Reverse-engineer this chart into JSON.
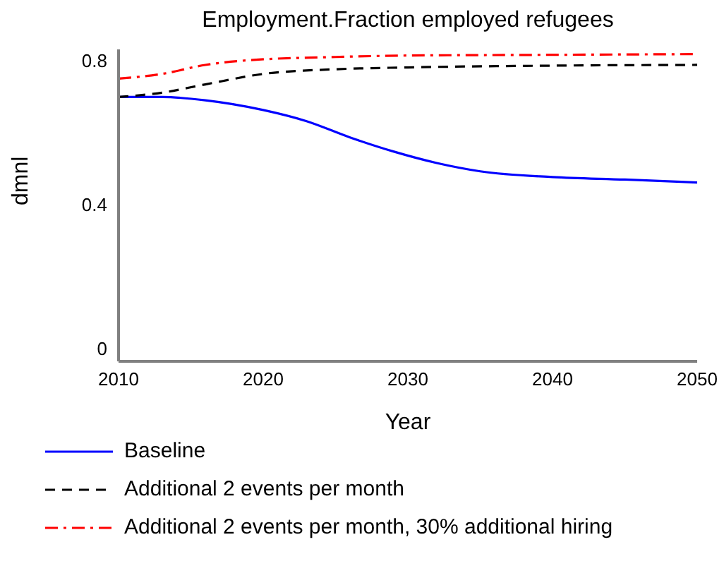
{
  "chart_data": {
    "type": "line",
    "title": "Employment.Fraction employed refugees",
    "xlabel": "Year",
    "ylabel": "dmnl",
    "xlim": [
      2010,
      2050
    ],
    "xticks": [
      2010,
      2020,
      2030,
      2040,
      2050
    ],
    "ylim": [
      -0.035,
      0.83
    ],
    "yticks": [
      0,
      0.4,
      0.8
    ],
    "legend": "bottom",
    "marker": "none",
    "series": [
      {
        "name": "Baseline",
        "color": "#0000ff",
        "line_style": "solid",
        "x": [
          2010,
          2013,
          2016,
          2020,
          2023,
          2026,
          2029,
          2032,
          2035,
          2040,
          2045,
          2050
        ],
        "values": [
          0.698,
          0.698,
          0.689,
          0.662,
          0.631,
          0.586,
          0.547,
          0.515,
          0.492,
          0.476,
          0.469,
          0.461
        ]
      },
      {
        "name": "Additional 2 events per month",
        "color": "#000000",
        "line_style": "dashed",
        "x": [
          2010,
          2013,
          2016,
          2020,
          2025,
          2030,
          2040,
          2050
        ],
        "values": [
          0.698,
          0.71,
          0.733,
          0.762,
          0.775,
          0.78,
          0.785,
          0.787
        ]
      },
      {
        "name": "Additional 2 events per month, 30% additional hiring",
        "color": "#ff0000",
        "line_style": "dashdot",
        "x": [
          2010,
          2013,
          2016,
          2019,
          2025,
          2030,
          2040,
          2050
        ],
        "values": [
          0.749,
          0.762,
          0.787,
          0.8,
          0.809,
          0.813,
          0.815,
          0.817
        ]
      }
    ]
  }
}
